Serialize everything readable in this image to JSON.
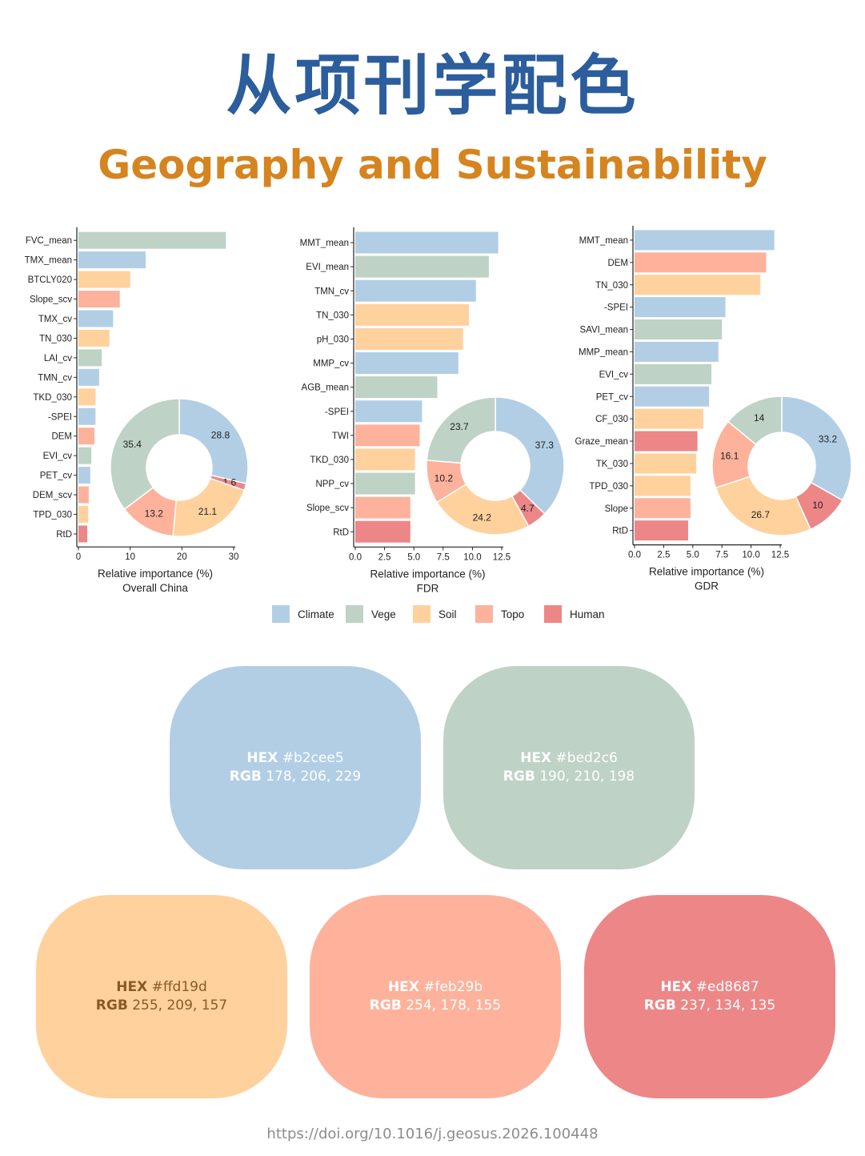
{
  "header": {
    "title_zh": "从项刊学配色",
    "title_en": "Geography and Sustainability"
  },
  "colors": {
    "Climate": "#b2cee5",
    "Vege": "#bed2c6",
    "Soil": "#ffd19d",
    "Topo": "#feb29b",
    "Human": "#ed8687"
  },
  "chart_data": [
    {
      "type": "bar",
      "orientation": "horizontal",
      "title": "Overall China",
      "xlabel": "Relative importance (%)",
      "xlim": [
        0,
        30
      ],
      "xticks": [
        "0",
        "10",
        "20",
        "30"
      ],
      "categories": [
        "FVC_mean",
        "TMX_mean",
        "BTCLY020",
        "Slope_scv",
        "TMX_cv",
        "TN_030",
        "LAI_cv",
        "TMN_cv",
        "TKD_030",
        "-SPEI",
        "DEM",
        "EVI_cv",
        "PET_cv",
        "DEM_scv",
        "TPD_030",
        "RtD"
      ],
      "values": [
        28.5,
        13.0,
        10.0,
        8.0,
        6.7,
        6.0,
        4.5,
        4.0,
        3.3,
        3.3,
        3.1,
        2.5,
        2.3,
        2.0,
        1.9,
        1.7
      ],
      "groups": [
        "Vege",
        "Climate",
        "Soil",
        "Topo",
        "Climate",
        "Soil",
        "Vege",
        "Climate",
        "Soil",
        "Climate",
        "Topo",
        "Vege",
        "Climate",
        "Topo",
        "Soil",
        "Human"
      ],
      "pie": {
        "type": "pie",
        "labels": [
          "Climate",
          "Human",
          "Soil",
          "Topo",
          "Vege"
        ],
        "values": [
          28.8,
          1.6,
          21.1,
          13.2,
          35.4
        ],
        "value_labels": [
          "28.8",
          "1.6",
          "21.1",
          "13.2",
          "35.4"
        ]
      }
    },
    {
      "type": "bar",
      "orientation": "horizontal",
      "title": "FDR",
      "xlabel": "Relative importance (%)",
      "xlim": [
        0,
        12.5
      ],
      "xticks": [
        "0.0",
        "2.5",
        "5.0",
        "7.5",
        "10.0",
        "12.5"
      ],
      "categories": [
        "MMT_mean",
        "EVI_mean",
        "TMN_cv",
        "TN_030",
        "pH_030",
        "MMP_cv",
        "AGB_mean",
        "-SPEI",
        "TWI",
        "TKD_030",
        "NPP_cv",
        "Slope_scv",
        "RtD"
      ],
      "values": [
        12.2,
        11.4,
        10.3,
        9.7,
        9.2,
        8.8,
        7.0,
        5.7,
        5.5,
        5.1,
        5.1,
        4.7,
        4.7
      ],
      "groups": [
        "Climate",
        "Vege",
        "Climate",
        "Soil",
        "Soil",
        "Climate",
        "Vege",
        "Climate",
        "Topo",
        "Soil",
        "Vege",
        "Topo",
        "Human"
      ],
      "pie": {
        "type": "pie",
        "labels": [
          "Climate",
          "Human",
          "Soil",
          "Topo",
          "Vege"
        ],
        "values": [
          37.3,
          4.7,
          24.2,
          10.2,
          23.7
        ],
        "value_labels": [
          "37.3",
          "4.7",
          "24.2",
          "10.2",
          "23.7"
        ]
      }
    },
    {
      "type": "bar",
      "orientation": "horizontal",
      "title": "GDR",
      "xlabel": "Relative importance (%)",
      "xlim": [
        0,
        12.5
      ],
      "xticks": [
        "0.0",
        "2.5",
        "5.0",
        "7.5",
        "10.0",
        "12.5"
      ],
      "categories": [
        "MMT_mean",
        "DEM",
        "TN_030",
        "-SPEI",
        "SAVI_mean",
        "MMP_mean",
        "EVI_cv",
        "PET_cv",
        "CF_030",
        "Graze_mean",
        "TK_030",
        "TPD_030",
        "Slope",
        "RtD"
      ],
      "values": [
        12.0,
        11.3,
        10.8,
        7.8,
        7.5,
        7.2,
        6.6,
        6.4,
        5.9,
        5.4,
        5.3,
        4.8,
        4.8,
        4.6
      ],
      "groups": [
        "Climate",
        "Topo",
        "Soil",
        "Climate",
        "Vege",
        "Climate",
        "Vege",
        "Climate",
        "Soil",
        "Human",
        "Soil",
        "Soil",
        "Topo",
        "Human"
      ],
      "pie": {
        "type": "pie",
        "labels": [
          "Climate",
          "Human",
          "Soil",
          "Topo",
          "Vege"
        ],
        "values": [
          33.2,
          10,
          26.7,
          16.1,
          14
        ],
        "value_labels": [
          "33.2",
          "10",
          "26.7",
          "16.1",
          "14"
        ]
      }
    }
  ],
  "legend": {
    "placement": "bottom",
    "items": [
      "Climate",
      "Vege",
      "Soil",
      "Topo",
      "Human"
    ]
  },
  "swatches": [
    {
      "hex_key": "HEX",
      "hex": "#b2cee5",
      "rgb_key": "RGB",
      "rgb": "178, 206, 229"
    },
    {
      "hex_key": "HEX",
      "hex": "#bed2c6",
      "rgb_key": "RGB",
      "rgb": "190, 210, 198"
    },
    {
      "hex_key": "HEX",
      "hex": "#ffd19d",
      "rgb_key": "RGB",
      "rgb": "255, 209, 157"
    },
    {
      "hex_key": "HEX",
      "hex": "#feb29b",
      "rgb_key": "RGB",
      "rgb": "254, 178, 155"
    },
    {
      "hex_key": "HEX",
      "hex": "#ed8687",
      "rgb_key": "RGB",
      "rgb": "237, 134, 135"
    }
  ],
  "footer": {
    "doi": "https://doi.org/10.1016/j.geosus.2026.100448"
  }
}
